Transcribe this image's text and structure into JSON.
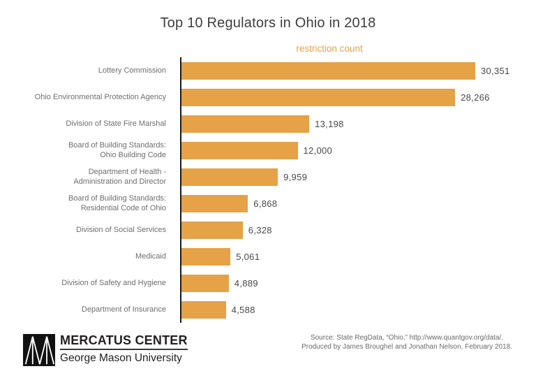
{
  "page": {
    "background": "#ffffff"
  },
  "chart_data": {
    "type": "bar",
    "orientation": "horizontal",
    "title": "Top 10 Regulators in Ohio in 2018",
    "axis_title": "restriction count",
    "categories": [
      "Lottery Commission",
      "Ohio Environmental Protection Agency",
      "Division of State Fire Marshal",
      "Board of Building Standards:\nOhio Building Code",
      "Department of Health -\nAdministration and Director",
      "Board of Building Standards:\nResidential Code of Ohio",
      "Division of Social Services",
      "Medicaid",
      "Division of Safety and Hygiene",
      "Department of Insurance"
    ],
    "values": [
      30351,
      28266,
      13198,
      12000,
      9959,
      6868,
      6328,
      5061,
      4889,
      4588
    ],
    "value_labels": [
      "30,351",
      "28,266",
      "13,198",
      "12,000",
      "9,959",
      "6,868",
      "6,328",
      "5,061",
      "4,889",
      "4,588"
    ],
    "xlim": [
      0,
      30351
    ],
    "grid": false,
    "legend": "none",
    "bar_color": "#e5a246",
    "axis_color": "#1a1a1a",
    "title_color": "#3d3d3d",
    "label_color": "#6e6e6e",
    "value_color": "#484848"
  },
  "footer": {
    "brand": {
      "logo_icon": "mercatus-m-logo",
      "name": "MERCATUS CENTER",
      "subtitle": "George Mason University",
      "color": "#231f20"
    },
    "source_line1": "Source: State RegData, “Ohio,” http://www.quantgov.org/data/.",
    "source_line2": "Produced by James Broughel and Jonathan Nelson, February 2018.",
    "source_color": "#6a6a6a"
  }
}
